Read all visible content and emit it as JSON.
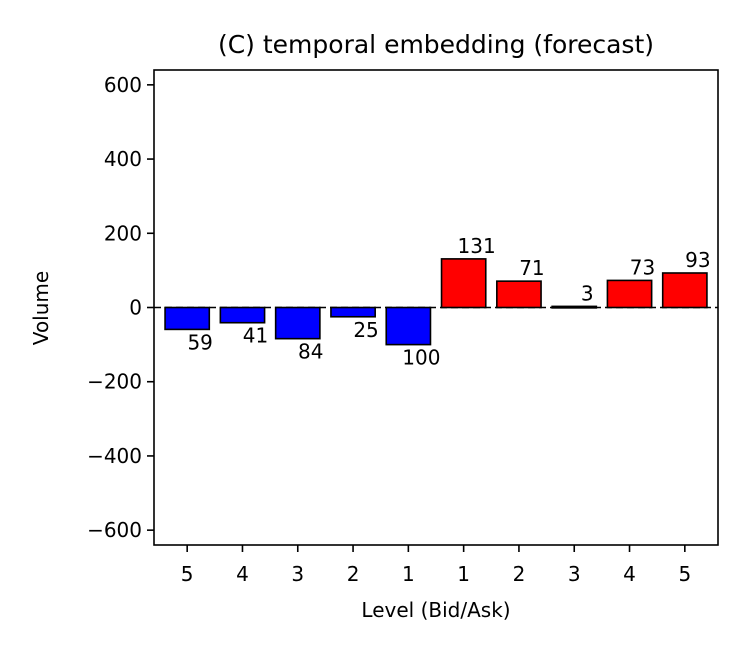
{
  "chart_data": {
    "type": "bar",
    "title": "(C) temporal embedding (forecast)",
    "xlabel": "Level (Bid/Ask)",
    "ylabel": "Volume",
    "ylim": [
      -640,
      640
    ],
    "yticks": [
      600,
      400,
      200,
      0,
      -200,
      -400,
      -600
    ],
    "ytick_labels": [
      "600",
      "400",
      "200",
      "0",
      "−200",
      "−400",
      "−600"
    ],
    "categories": [
      "5",
      "4",
      "3",
      "2",
      "1",
      "1",
      "2",
      "3",
      "4",
      "5"
    ],
    "values": [
      -59,
      -41,
      -84,
      -25,
      -100,
      131,
      71,
      3,
      73,
      93
    ],
    "value_labels": [
      "59",
      "41",
      "84",
      "25",
      "100",
      "131",
      "71",
      "3",
      "73",
      "93"
    ],
    "series_colors": {
      "bid": "#0000ff",
      "ask": "#ff0000"
    },
    "edge_color": "#000000",
    "zero_line": "dashed",
    "grid": false
  }
}
